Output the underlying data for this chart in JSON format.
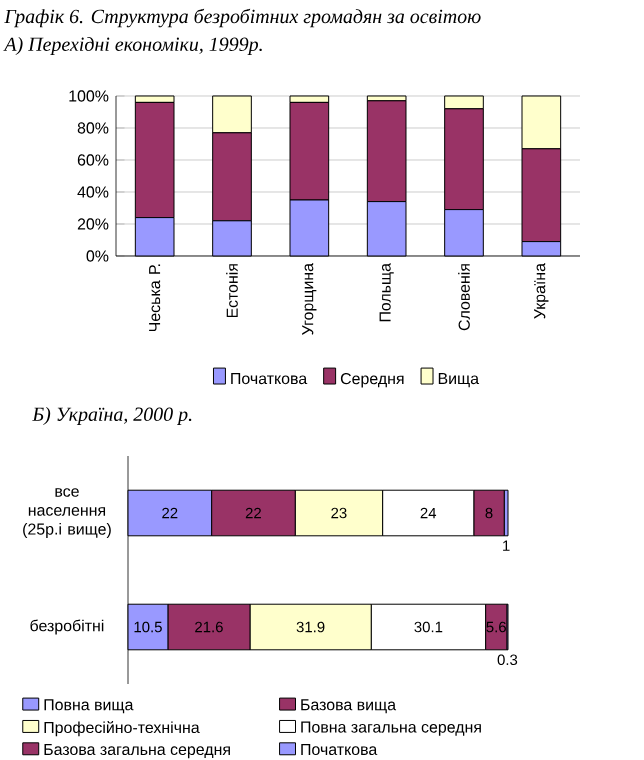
{
  "chart_data": [
    {
      "type": "bar",
      "stacked": true,
      "title": "Графік 6. Структура безробітних громадян за освітою",
      "subtitle": "А) Перехідні економіки, 1999р.",
      "categories": [
        "Чеська Р.",
        "Естонія",
        "Угорщина",
        "Польща",
        "Словенія",
        "Україна"
      ],
      "series": [
        {
          "name": "Початкова",
          "color": "#9999ff",
          "values": [
            24,
            22,
            35,
            34,
            29,
            9
          ]
        },
        {
          "name": "Середня",
          "color": "#993366",
          "values": [
            72,
            55,
            61,
            63,
            63,
            58
          ]
        },
        {
          "name": "Вища",
          "color": "#ffffcc",
          "values": [
            4,
            23,
            4,
            3,
            8,
            33
          ]
        }
      ],
      "ylim": [
        0,
        100
      ],
      "yticks": [
        {
          "value": 0,
          "label": "0%"
        },
        {
          "value": 20,
          "label": "20%"
        },
        {
          "value": 40,
          "label": "40%"
        },
        {
          "value": 60,
          "label": "60%"
        },
        {
          "value": 80,
          "label": "80%"
        },
        {
          "value": 100,
          "label": "100%"
        }
      ],
      "grid": "y",
      "legend": "bottom"
    },
    {
      "type": "bar",
      "stacked": true,
      "orientation": "horizontal",
      "title": "Б) Україна, 2000 р.",
      "categories": [
        "все населення (25р.і вище)",
        "безробітні"
      ],
      "series": [
        {
          "name": "Повна вища",
          "color": "#9999ff",
          "values": [
            22,
            10.5
          ]
        },
        {
          "name": "Базова вища",
          "color": "#993366",
          "values": [
            22,
            21.6
          ]
        },
        {
          "name": "Професійно-технічна",
          "color": "#ffffcc",
          "values": [
            23,
            31.9
          ]
        },
        {
          "name": "Повна загальна середня",
          "color": "#ffffff",
          "values": [
            24,
            30.1
          ]
        },
        {
          "name": "Базова загальна середня",
          "color": "#993366",
          "values": [
            8,
            5.6
          ]
        },
        {
          "name": "Початкова",
          "color": "#9999ff",
          "values": [
            1,
            0.3
          ]
        }
      ],
      "data_labels": true,
      "legend": "bottom"
    }
  ]
}
